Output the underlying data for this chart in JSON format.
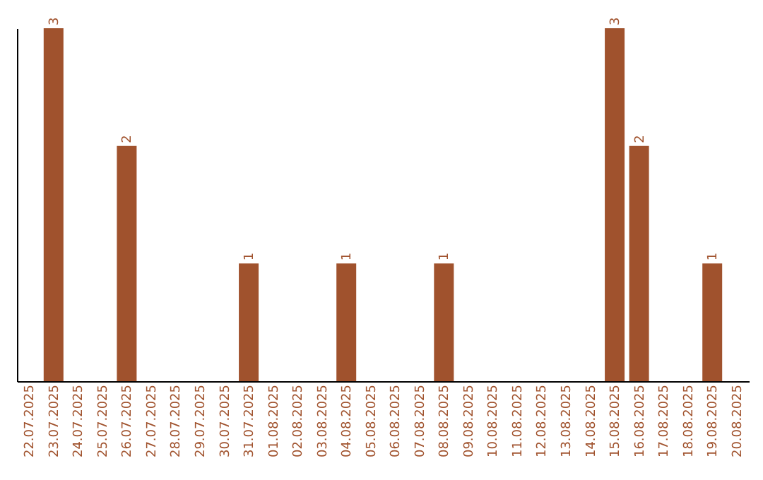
{
  "chart_data": {
    "type": "bar",
    "categories": [
      "22.07.2025",
      "23.07.2025",
      "24.07.2025",
      "25.07.2025",
      "26.07.2025",
      "27.07.2025",
      "28.07.2025",
      "29.07.2025",
      "30.07.2025",
      "31.07.2025",
      "01.08.2025",
      "02.08.2025",
      "03.08.2025",
      "04.08.2025",
      "05.08.2025",
      "06.08.2025",
      "07.08.2025",
      "08.08.2025",
      "09.08.2025",
      "10.08.2025",
      "11.08.2025",
      "12.08.2025",
      "13.08.2025",
      "14.08.2025",
      "15.08.2025",
      "16.08.2025",
      "17.08.2025",
      "18.08.2025",
      "19.08.2025",
      "20.08.2025"
    ],
    "values": [
      0,
      3,
      0,
      0,
      2,
      0,
      0,
      0,
      0,
      1,
      0,
      0,
      0,
      1,
      0,
      0,
      0,
      1,
      0,
      0,
      0,
      0,
      0,
      0,
      3,
      2,
      0,
      0,
      1,
      0
    ],
    "value_labels": [
      null,
      "3",
      null,
      null,
      "2",
      null,
      null,
      null,
      null,
      "1",
      null,
      null,
      null,
      "1",
      null,
      null,
      null,
      "1",
      null,
      null,
      null,
      null,
      null,
      null,
      "3",
      "2",
      null,
      null,
      "1",
      null
    ],
    "color": "#a0522d",
    "grid": false
  }
}
